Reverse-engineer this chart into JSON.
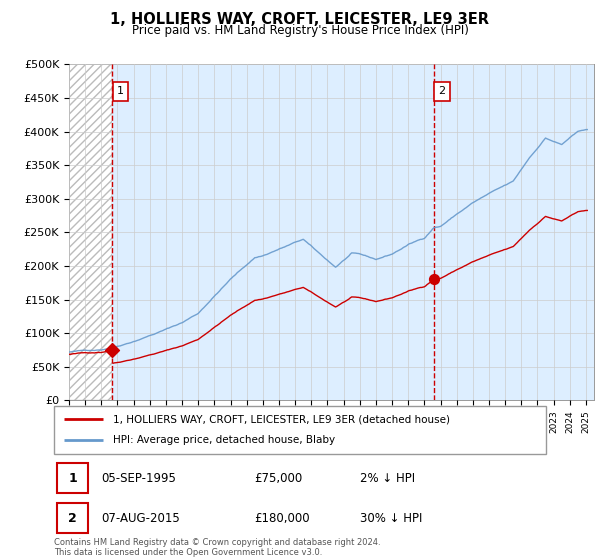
{
  "title": "1, HOLLIERS WAY, CROFT, LEICESTER, LE9 3ER",
  "subtitle": "Price paid vs. HM Land Registry's House Price Index (HPI)",
  "legend_line1": "1, HOLLIERS WAY, CROFT, LEICESTER, LE9 3ER (detached house)",
  "legend_line2": "HPI: Average price, detached house, Blaby",
  "annotation1_date": "05-SEP-1995",
  "annotation1_price": "£75,000",
  "annotation1_hpi": "2% ↓ HPI",
  "annotation2_date": "07-AUG-2015",
  "annotation2_price": "£180,000",
  "annotation2_hpi": "30% ↓ HPI",
  "footnote": "Contains HM Land Registry data © Crown copyright and database right 2024.\nThis data is licensed under the Open Government Licence v3.0.",
  "sale_color": "#cc0000",
  "hpi_color": "#6699cc",
  "ylim": [
    0,
    500000
  ],
  "yticks": [
    0,
    50000,
    100000,
    150000,
    200000,
    250000,
    300000,
    350000,
    400000,
    450000,
    500000
  ],
  "sale1_x": 1995.67,
  "sale1_y": 75000,
  "sale2_x": 2015.58,
  "sale2_y": 180000,
  "xlim_start": 1993.0,
  "xlim_end": 2025.5
}
